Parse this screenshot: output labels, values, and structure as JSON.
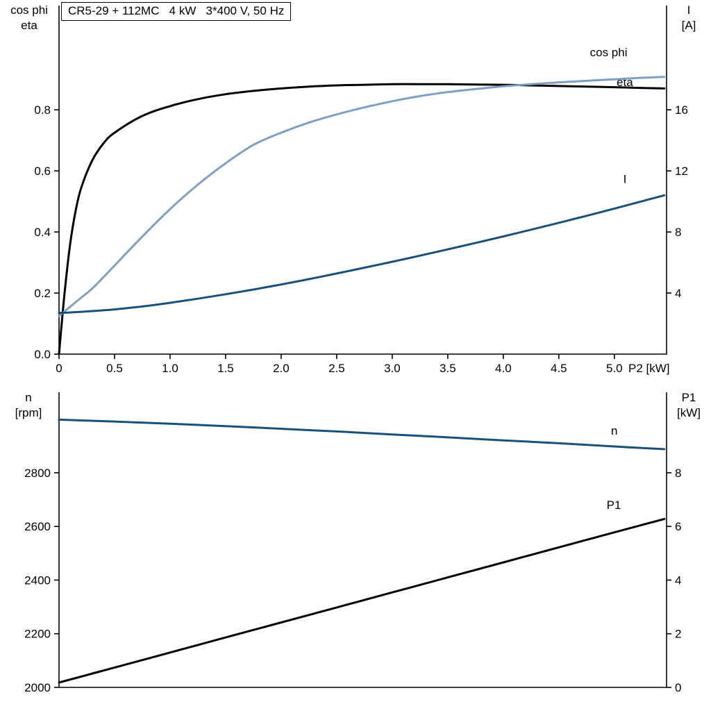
{
  "page": {
    "background": "#ffffff"
  },
  "chart_data": [
    {
      "type": "line",
      "title": "CR5-29 + 112MC   4 kW   3*400 V, 50 Hz",
      "corner_labels": {
        "left": [
          "cos phi",
          "eta"
        ],
        "right": [
          "I",
          "[A]"
        ]
      },
      "x_axis_label": "P2 [kW]",
      "x_range": [
        0,
        5.47
      ],
      "x_ticks": [
        0,
        0.5,
        1.0,
        1.5,
        2.0,
        2.5,
        3.0,
        3.5,
        4.0,
        4.5,
        5.0
      ],
      "x_tick_labels": [
        "0",
        "0.5",
        "1.0",
        "1.5",
        "2.0",
        "2.5",
        "3.0",
        "3.5",
        "4.0",
        "4.5",
        "5.0"
      ],
      "left_axis": {
        "label": "cos phi / eta",
        "range": [
          0,
          1.03
        ],
        "ticks": [
          0.0,
          0.2,
          0.4,
          0.6,
          0.8
        ],
        "tick_labels": [
          "0.0",
          "0.2",
          "0.4",
          "0.6",
          "0.8"
        ]
      },
      "right_axis": {
        "label": "I [A]",
        "range": [
          0,
          20.6
        ],
        "ticks": [
          4,
          8,
          12,
          16
        ],
        "tick_labels": [
          "4",
          "8",
          "12",
          "16"
        ]
      },
      "series": [
        {
          "name": "eta",
          "axis": "left",
          "color": "#000000",
          "x": [
            0,
            0.05,
            0.1,
            0.15,
            0.2,
            0.3,
            0.4,
            0.5,
            0.75,
            1.0,
            1.25,
            1.5,
            1.75,
            2.0,
            2.25,
            2.5,
            2.75,
            3.0,
            3.25,
            3.5,
            3.75,
            4.0,
            4.25,
            4.5,
            4.75,
            5.0,
            5.2,
            5.45
          ],
          "y": [
            0,
            0.2,
            0.36,
            0.47,
            0.545,
            0.635,
            0.69,
            0.725,
            0.78,
            0.812,
            0.835,
            0.851,
            0.862,
            0.87,
            0.876,
            0.88,
            0.882,
            0.884,
            0.884,
            0.884,
            0.883,
            0.882,
            0.88,
            0.878,
            0.876,
            0.874,
            0.872,
            0.87
          ],
          "label": "eta",
          "label_pos": {
            "x": 5.02,
            "y": 0.878
          }
        },
        {
          "name": "cos phi",
          "axis": "left",
          "color": "#7d9fc4",
          "x": [
            0,
            0.05,
            0.1,
            0.15,
            0.2,
            0.3,
            0.4,
            0.5,
            0.75,
            1.0,
            1.25,
            1.5,
            1.75,
            2.0,
            2.25,
            2.5,
            2.75,
            3.0,
            3.25,
            3.5,
            3.75,
            4.0,
            4.25,
            4.5,
            4.75,
            5.0,
            5.2,
            5.45
          ],
          "y": [
            0.125,
            0.14,
            0.155,
            0.17,
            0.185,
            0.215,
            0.252,
            0.29,
            0.385,
            0.475,
            0.555,
            0.625,
            0.685,
            0.725,
            0.758,
            0.785,
            0.808,
            0.828,
            0.845,
            0.858,
            0.868,
            0.877,
            0.884,
            0.89,
            0.895,
            0.9,
            0.904,
            0.908
          ],
          "label": "cos phi",
          "label_pos": {
            "x": 4.78,
            "y": 0.975
          }
        },
        {
          "name": "I",
          "axis": "right",
          "color": "#17517a",
          "x": [
            0,
            0.05,
            0.1,
            0.15,
            0.2,
            0.3,
            0.4,
            0.5,
            0.75,
            1.0,
            1.25,
            1.5,
            1.75,
            2.0,
            2.25,
            2.5,
            2.75,
            3.0,
            3.25,
            3.5,
            3.75,
            4.0,
            4.25,
            4.5,
            4.75,
            5.0,
            5.2,
            5.45
          ],
          "y": [
            2.7,
            2.71,
            2.73,
            2.75,
            2.77,
            2.82,
            2.87,
            2.93,
            3.12,
            3.36,
            3.63,
            3.92,
            4.23,
            4.56,
            4.91,
            5.28,
            5.66,
            6.05,
            6.45,
            6.86,
            7.28,
            7.71,
            8.15,
            8.6,
            9.06,
            9.53,
            9.92,
            10.4
          ],
          "label": "I",
          "label_pos": {
            "x": 5.08,
            "y": 11.2
          }
        }
      ]
    },
    {
      "type": "line",
      "title": "",
      "corner_labels": {
        "left": [
          "n",
          "[rpm]"
        ],
        "right": [
          "P1",
          "[kW]"
        ]
      },
      "x_axis_label": "",
      "x_range": [
        0,
        5.47
      ],
      "x_ticks": [],
      "x_tick_labels": [],
      "left_axis": {
        "label": "n [rpm]",
        "range": [
          2000,
          3100
        ],
        "ticks": [
          2000,
          2200,
          2400,
          2600,
          2800
        ],
        "tick_labels": [
          "2000",
          "2200",
          "2400",
          "2600",
          "2800"
        ]
      },
      "right_axis": {
        "label": "P1 [kW]",
        "range": [
          0,
          11
        ],
        "ticks": [
          0,
          2,
          4,
          6,
          8
        ],
        "tick_labels": [
          "0",
          "2",
          "4",
          "6",
          "8"
        ]
      },
      "series": [
        {
          "name": "n",
          "axis": "left",
          "color": "#17517a",
          "x": [
            0,
            0.5,
            1.0,
            1.5,
            2.0,
            2.5,
            3.0,
            3.5,
            4.0,
            4.5,
            5.0,
            5.45
          ],
          "y": [
            2998,
            2991,
            2983,
            2974,
            2964,
            2954,
            2943,
            2932,
            2921,
            2910,
            2898,
            2888
          ],
          "label": "n",
          "label_pos": {
            "x": 4.97,
            "y": 2942
          }
        },
        {
          "name": "P1",
          "axis": "right",
          "color": "#000000",
          "x": [
            0,
            0.5,
            1.0,
            1.5,
            2.0,
            2.5,
            3.0,
            3.5,
            4.0,
            4.5,
            5.0,
            5.45
          ],
          "y": [
            0.18,
            0.74,
            1.3,
            1.86,
            2.42,
            2.98,
            3.54,
            4.1,
            4.66,
            5.22,
            5.78,
            6.28
          ],
          "label": "P1",
          "label_pos": {
            "x": 4.93,
            "y": 6.65
          }
        }
      ]
    }
  ]
}
